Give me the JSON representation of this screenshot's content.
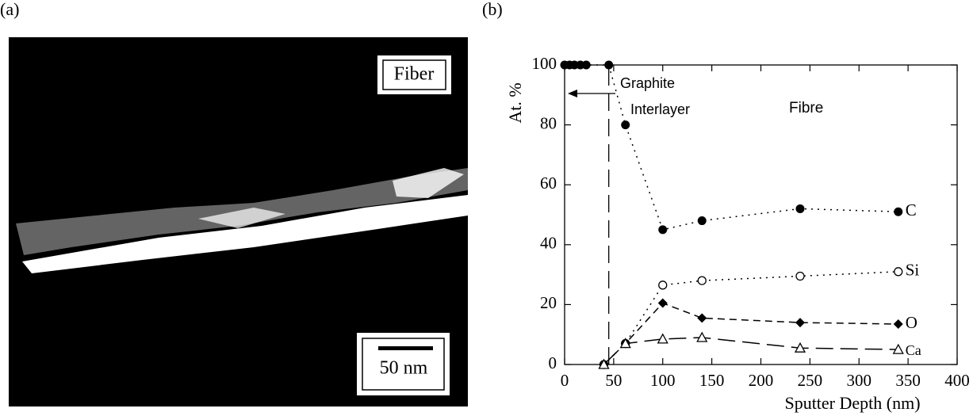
{
  "panel_a": {
    "label": "(a)",
    "inset_label": "Fiber",
    "scale_bar": "50 nm"
  },
  "chart_data": {
    "type": "line",
    "panel_label": "(b)",
    "xlabel": "Sputter Depth (nm)",
    "ylabel": "At. %",
    "xlim": [
      0,
      400
    ],
    "xticks": [
      0,
      50,
      100,
      150,
      200,
      250,
      300,
      350,
      400
    ],
    "ylim": [
      0,
      100
    ],
    "yticks": [
      0,
      20,
      40,
      60,
      80,
      100
    ],
    "annotations": [
      "Graphite",
      "Interlayer",
      "Fibre"
    ],
    "reference_line_x": 45,
    "series": [
      {
        "name": "C",
        "color": "#000000",
        "marker": "filled-circle",
        "linestyle": "dotted",
        "x": [
          0,
          5,
          10,
          16,
          22,
          45,
          62,
          100,
          140,
          240,
          340
        ],
        "values": [
          100,
          100,
          100,
          100,
          100,
          100,
          80,
          45,
          48,
          52,
          51
        ]
      },
      {
        "name": "Si",
        "color": "#000000",
        "marker": "open-circle",
        "linestyle": "dotted",
        "x": [
          40,
          62,
          100,
          140,
          240,
          340
        ],
        "values": [
          0,
          7,
          26.5,
          28,
          29.5,
          31
        ]
      },
      {
        "name": "O",
        "color": "#000000",
        "marker": "filled-diamond",
        "linestyle": "dashed",
        "x": [
          40,
          62,
          100,
          140,
          240,
          340
        ],
        "values": [
          0,
          7,
          20.5,
          15.5,
          14,
          13.5
        ]
      },
      {
        "name": "Ca",
        "color": "#000000",
        "marker": "open-triangle",
        "linestyle": "long-dashed",
        "x": [
          40,
          62,
          100,
          140,
          240,
          340
        ],
        "values": [
          0,
          7,
          8.5,
          9,
          5.5,
          5
        ]
      }
    ]
  }
}
